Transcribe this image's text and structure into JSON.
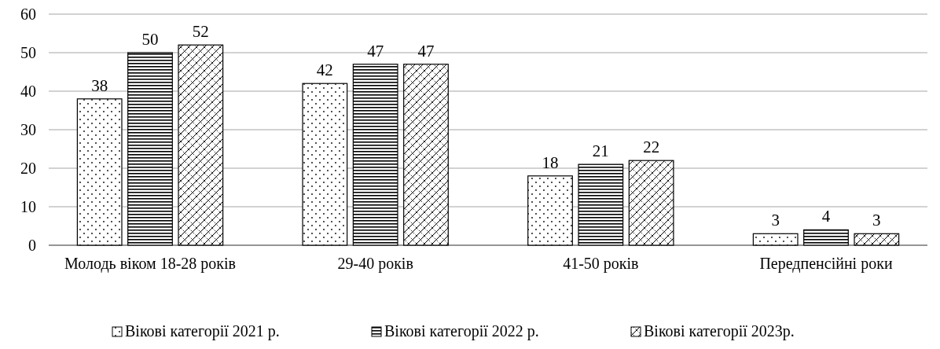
{
  "chart_data": {
    "type": "bar",
    "categories": [
      "Молодь віком 18-28 років",
      "29-40 років",
      "41-50 років",
      "Передпенсійні роки"
    ],
    "series": [
      {
        "name": "Вікові категорії 2021 р.",
        "color": "#000000",
        "values": [
          38,
          42,
          18,
          3
        ]
      },
      {
        "name": "Вікові категорії 2022 р.",
        "color": "#000000",
        "values": [
          50,
          47,
          21,
          4
        ]
      },
      {
        "name": "Вікові категорії 2023р.",
        "color": "#000000",
        "values": [
          52,
          47,
          22,
          3
        ]
      }
    ],
    "ylim": [
      0,
      60
    ],
    "yticks": [
      0,
      10,
      20,
      30,
      40,
      50,
      60
    ],
    "grid": "y",
    "data_labels": true,
    "legend": "bottom"
  }
}
